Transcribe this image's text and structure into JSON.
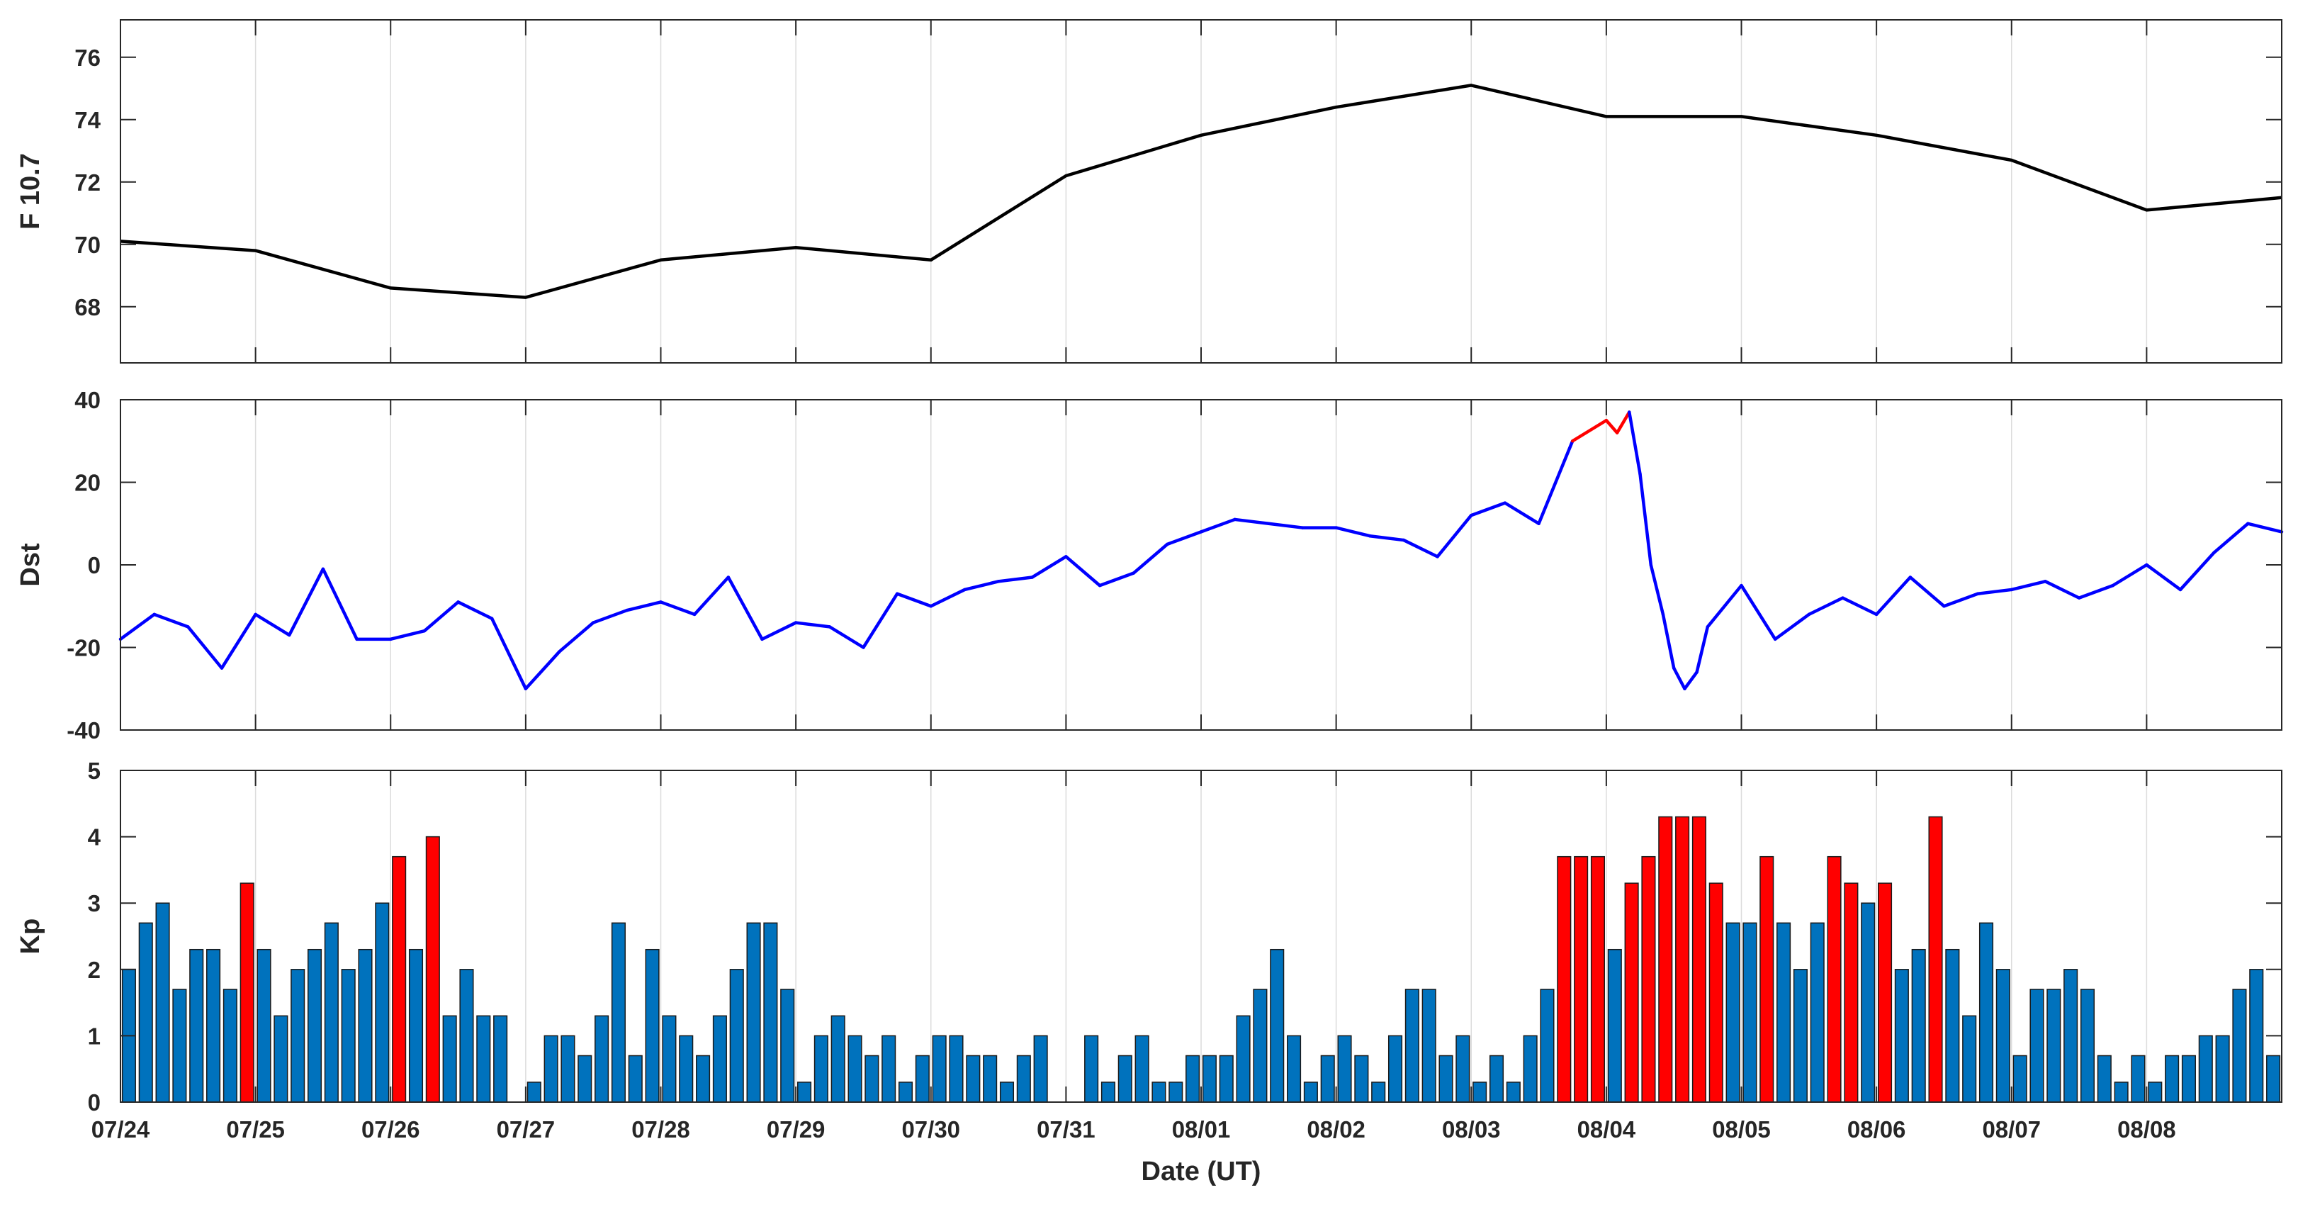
{
  "colors": {
    "f107_line": "#000000",
    "dst_line": "#0000ff",
    "dst_extreme": "#ff0000",
    "kp_normal": "#0072bd",
    "kp_storm": "#ff0000",
    "grid": "#dcdcdc"
  },
  "x_axis": {
    "label": "Date (UT)",
    "ticks": [
      "07/24",
      "07/25",
      "07/26",
      "07/27",
      "07/28",
      "07/29",
      "07/30",
      "07/31",
      "08/01",
      "08/02",
      "08/03",
      "08/04",
      "08/05",
      "08/06",
      "08/07",
      "08/08"
    ],
    "range_days": [
      0,
      16
    ],
    "grid": true
  },
  "chart_data": [
    {
      "type": "line",
      "ylabel": "F 10.7",
      "ylim": [
        66.2,
        77.2
      ],
      "yticks": [
        68,
        70,
        72,
        74,
        76
      ],
      "x_days": [
        0,
        1,
        2,
        3,
        4,
        5,
        6,
        7,
        8,
        9,
        10,
        11,
        12,
        13,
        14,
        15,
        16
      ],
      "values": [
        70.1,
        69.8,
        68.6,
        68.3,
        69.5,
        69.9,
        69.5,
        72.2,
        73.5,
        74.4,
        75.1,
        74.1,
        74.1,
        73.5,
        72.7,
        71.1,
        71.5
      ]
    },
    {
      "type": "line",
      "ylabel": "Dst",
      "ylim": [
        -40,
        40
      ],
      "yticks": [
        -40,
        -20,
        0,
        20,
        40
      ],
      "x_days": [
        0,
        0.25,
        0.5,
        0.75,
        1,
        1.25,
        1.5,
        1.75,
        2,
        2.25,
        2.5,
        2.75,
        3,
        3.25,
        3.5,
        3.75,
        4,
        4.25,
        4.5,
        4.75,
        5,
        5.25,
        5.5,
        5.75,
        6,
        6.25,
        6.5,
        6.75,
        7,
        7.25,
        7.5,
        7.75,
        8,
        8.25,
        8.5,
        8.75,
        9,
        9.25,
        9.5,
        9.75,
        10,
        10.25,
        10.5,
        10.75,
        11,
        11.08,
        11.17,
        11.25,
        11.33,
        11.42,
        11.5,
        11.58,
        11.67,
        11.75,
        12,
        12.25,
        12.5,
        12.75,
        13,
        13.25,
        13.5,
        13.75,
        14,
        14.25,
        14.5,
        14.75,
        15,
        15.25,
        15.5,
        15.75,
        16
      ],
      "values": [
        -18,
        -12,
        -15,
        -25,
        -12,
        -17,
        -1,
        -18,
        -18,
        -16,
        -9,
        -13,
        -30,
        -21,
        -14,
        -11,
        -9,
        -12,
        -3,
        -18,
        -14,
        -15,
        -20,
        -7,
        -10,
        -6,
        -4,
        -3,
        2,
        -5,
        -2,
        5,
        8,
        11,
        10,
        9,
        9,
        7,
        6,
        2,
        12,
        15,
        10,
        30,
        35,
        32,
        37,
        22,
        0,
        -12,
        -25,
        -30,
        -26,
        -15,
        -5,
        -18,
        -12,
        -8,
        -12,
        -3,
        -10,
        -7,
        -6,
        -4,
        -8,
        -5,
        0,
        -6,
        3,
        10,
        8
      ],
      "extreme_threshold": 30
    },
    {
      "type": "bar",
      "ylabel": "Kp",
      "ylim": [
        0,
        5
      ],
      "yticks": [
        0,
        1,
        2,
        3,
        4,
        5
      ],
      "interval_hours": 3,
      "storm_threshold": 3.3,
      "values": [
        2.0,
        2.7,
        3.0,
        1.7,
        2.3,
        2.3,
        1.7,
        3.3,
        2.3,
        1.3,
        2.0,
        2.3,
        2.7,
        2.0,
        2.3,
        3.0,
        3.7,
        2.3,
        4.0,
        1.3,
        2.0,
        1.3,
        1.3,
        0.0,
        0.3,
        1.0,
        1.0,
        0.7,
        1.3,
        2.7,
        0.7,
        2.3,
        1.3,
        1.0,
        0.7,
        1.3,
        2.0,
        2.7,
        2.7,
        1.7,
        0.3,
        1.0,
        1.3,
        1.0,
        0.7,
        1.0,
        0.3,
        0.7,
        1.0,
        1.0,
        0.7,
        0.7,
        0.3,
        0.7,
        1.0,
        0.0,
        0.0,
        1.0,
        0.3,
        0.7,
        1.0,
        0.3,
        0.3,
        0.7,
        0.7,
        0.7,
        1.3,
        1.7,
        2.3,
        1.0,
        0.3,
        0.7,
        1.0,
        0.7,
        0.3,
        1.0,
        1.7,
        1.7,
        0.7,
        1.0,
        0.3,
        0.7,
        0.3,
        1.0,
        1.7,
        3.7,
        3.7,
        3.7,
        2.3,
        3.3,
        3.7,
        4.3,
        4.3,
        4.3,
        3.3,
        2.7,
        2.7,
        3.7,
        2.7,
        2.0,
        2.7,
        3.7,
        3.3,
        3.0,
        3.3,
        2.0,
        2.3,
        4.3,
        2.3,
        1.3,
        2.7,
        2.0,
        0.7,
        1.7,
        1.7,
        2.0,
        1.7,
        0.7,
        0.3,
        0.7,
        0.3,
        0.7,
        0.7,
        1.0,
        1.0,
        1.7,
        2.0,
        0.7
      ]
    }
  ]
}
